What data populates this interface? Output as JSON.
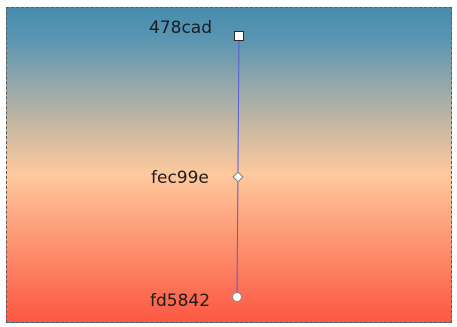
{
  "gradient": {
    "type": "linear",
    "direction": "vertical",
    "stops": [
      {
        "label": "478cad",
        "color": "#478cad",
        "handle": "square-handle"
      },
      {
        "label": "fec99e",
        "color": "#fec99e",
        "handle": "diamond-handle"
      },
      {
        "label": "fd5842",
        "color": "#fd5842",
        "handle": "circle-handle"
      }
    ],
    "line_color": "#5b5bd6"
  }
}
